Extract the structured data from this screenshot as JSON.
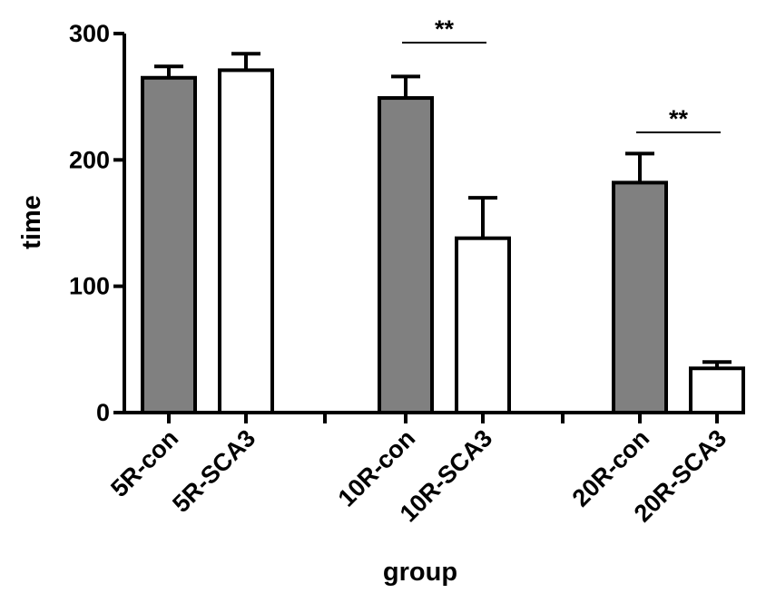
{
  "chart_data": {
    "type": "bar",
    "xlabel": "group",
    "ylabel": "time",
    "ylim": [
      0,
      300
    ],
    "yticks": [
      0,
      100,
      200,
      300
    ],
    "categories": [
      "5R-con",
      "5R-SCA3",
      "10R-con",
      "10R-SCA3",
      "20R-con",
      "20R-SCA3"
    ],
    "values": [
      265,
      271,
      249,
      138,
      182,
      35
    ],
    "error_upper": [
      9,
      13,
      17,
      32,
      23,
      5
    ],
    "fills": [
      "#808080",
      "#ffffff",
      "#808080",
      "#ffffff",
      "#808080",
      "#ffffff"
    ],
    "groups": [
      [
        0,
        1
      ],
      [
        2,
        3
      ],
      [
        4,
        5
      ]
    ],
    "significance": [
      {
        "between": [
          2,
          3
        ],
        "label": "**"
      },
      {
        "between": [
          4,
          5
        ],
        "label": "**"
      }
    ],
    "grid": false,
    "legend": "none"
  },
  "colors": {
    "con_fill": "#808080",
    "sca3_fill": "#ffffff",
    "stroke": "#000000"
  }
}
